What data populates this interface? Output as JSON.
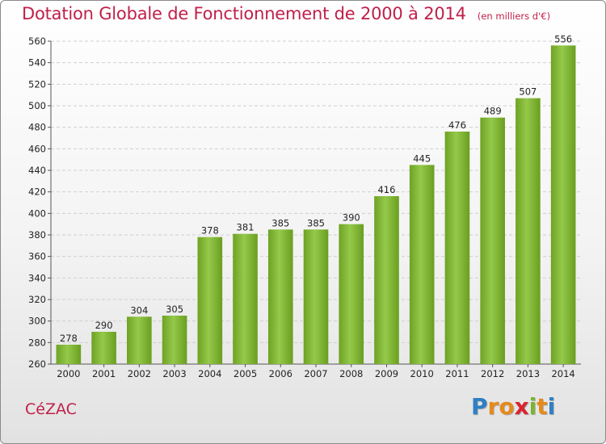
{
  "chart_data": {
    "type": "bar",
    "title": "Dotation Globale de Fonctionnement de 2000 à 2014",
    "subtitle": "(en milliers d'€)",
    "categories": [
      "2000",
      "2001",
      "2002",
      "2003",
      "2004",
      "2005",
      "2006",
      "2007",
      "2008",
      "2009",
      "2010",
      "2011",
      "2012",
      "2013",
      "2014"
    ],
    "values": [
      278,
      290,
      304,
      305,
      378,
      381,
      385,
      385,
      390,
      416,
      445,
      476,
      489,
      507,
      556
    ],
    "ylim": [
      260,
      560
    ],
    "yticks": [
      260,
      280,
      300,
      320,
      340,
      360,
      380,
      400,
      420,
      440,
      460,
      480,
      500,
      520,
      540,
      560
    ],
    "grid": true,
    "legend": "none",
    "bar_color": "#7db52e"
  },
  "footer": {
    "commune": "CéZAC",
    "logo_letters": [
      {
        "ch": "P",
        "color": "#2f7fc4"
      },
      {
        "ch": "r",
        "color": "#e68a1a"
      },
      {
        "ch": "o",
        "color": "#e68a1a"
      },
      {
        "ch": "x",
        "color": "#d9232e"
      },
      {
        "ch": "i",
        "color": "#7ab530"
      },
      {
        "ch": "t",
        "color": "#e68a1a"
      },
      {
        "ch": "i",
        "color": "#2f7fc4"
      }
    ]
  }
}
